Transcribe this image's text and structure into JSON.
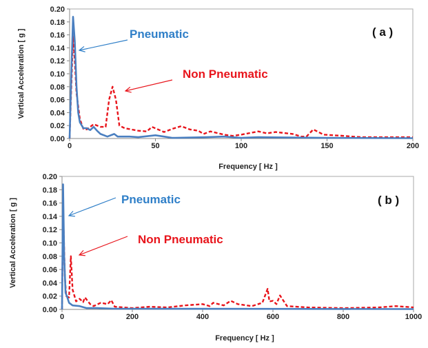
{
  "chart_data": [
    {
      "type": "line",
      "panel_label": "( a )",
      "xlabel": "Frequency  [ Hz ]",
      "ylabel": "Vertical Acceleration [ g ]",
      "xlim": [
        0,
        200
      ],
      "ylim": [
        0,
        0.2
      ],
      "xticks": [
        0,
        50,
        100,
        150,
        200
      ],
      "yticks": [
        "0.00",
        "0.02",
        "0.04",
        "0.06",
        "0.08",
        "0.10",
        "0.12",
        "0.14",
        "0.16",
        "0.18",
        "0.20"
      ],
      "grid": false,
      "annotations": [
        {
          "text": "Pneumatic",
          "color": "#2f7fc8"
        },
        {
          "text": "Non Pneumatic",
          "color": "#e8141b"
        }
      ],
      "series": [
        {
          "name": "Pneumatic",
          "color": "#4a7fc0",
          "style": "solid",
          "x": [
            0,
            1,
            2,
            3,
            4,
            5,
            6,
            8,
            10,
            12,
            14,
            16,
            18,
            22,
            26,
            28,
            35,
            40,
            50,
            55,
            60,
            80,
            90,
            100,
            110,
            150,
            200
          ],
          "y": [
            0,
            0.1,
            0.188,
            0.15,
            0.08,
            0.04,
            0.025,
            0.016,
            0.016,
            0.013,
            0.018,
            0.012,
            0.007,
            0.003,
            0.007,
            0.003,
            0.003,
            0.002,
            0.005,
            0.003,
            0.001,
            0.002,
            0.003,
            0.001,
            0.002,
            0.001,
            0.0005
          ]
        },
        {
          "name": "Non Pneumatic",
          "color": "#e8141b",
          "style": "dashed",
          "x": [
            0,
            1,
            2,
            3,
            4,
            6,
            8,
            10,
            14,
            18,
            21,
            23,
            25,
            27,
            29,
            32,
            40,
            45,
            48,
            55,
            60,
            65,
            70,
            75,
            78,
            82,
            90,
            95,
            100,
            110,
            115,
            120,
            130,
            135,
            138,
            142,
            148,
            160,
            170,
            200
          ],
          "y": [
            0,
            0.08,
            0.158,
            0.12,
            0.07,
            0.03,
            0.015,
            0.014,
            0.022,
            0.018,
            0.018,
            0.06,
            0.08,
            0.06,
            0.02,
            0.016,
            0.012,
            0.011,
            0.018,
            0.01,
            0.015,
            0.019,
            0.014,
            0.012,
            0.007,
            0.011,
            0.006,
            0.004,
            0.006,
            0.011,
            0.008,
            0.01,
            0.007,
            0.003,
            0.003,
            0.014,
            0.006,
            0.004,
            0.002,
            0.002
          ]
        }
      ]
    },
    {
      "type": "line",
      "panel_label": "( b )",
      "xlabel": "Frequency  [ Hz ]",
      "ylabel": "Vertical Acceleration [ g ]",
      "xlim": [
        0,
        1000
      ],
      "ylim": [
        0,
        0.2
      ],
      "xticks": [
        0,
        200,
        400,
        600,
        800,
        1000
      ],
      "yticks": [
        "0.00",
        "0.02",
        "0.04",
        "0.06",
        "0.08",
        "0.10",
        "0.12",
        "0.14",
        "0.16",
        "0.18",
        "0.20"
      ],
      "grid": false,
      "annotations": [
        {
          "text": "Pneumatic",
          "color": "#2f7fc8"
        },
        {
          "text": "Non Pneumatic",
          "color": "#e8141b"
        }
      ],
      "series": [
        {
          "name": "Pneumatic",
          "color": "#4a7fc0",
          "style": "solid",
          "x": [
            0,
            3,
            6,
            10,
            15,
            20,
            30,
            50,
            70,
            100,
            150,
            200,
            1000
          ],
          "y": [
            0,
            0.188,
            0.08,
            0.025,
            0.018,
            0.01,
            0.006,
            0.005,
            0.002,
            0.002,
            0.001,
            0.001,
            0.0005
          ]
        },
        {
          "name": "Non Pneumatic",
          "color": "#e8141b",
          "style": "dashed",
          "x": [
            0,
            3,
            8,
            12,
            20,
            25,
            30,
            40,
            50,
            60,
            65,
            80,
            90,
            110,
            130,
            140,
            150,
            200,
            250,
            300,
            350,
            400,
            420,
            430,
            460,
            480,
            500,
            540,
            570,
            585,
            590,
            600,
            610,
            620,
            640,
            700,
            800,
            900,
            950,
            1000
          ],
          "y": [
            0,
            0.155,
            0.05,
            0.02,
            0.018,
            0.08,
            0.03,
            0.012,
            0.016,
            0.011,
            0.018,
            0.008,
            0.005,
            0.01,
            0.008,
            0.014,
            0.004,
            0.002,
            0.004,
            0.003,
            0.006,
            0.008,
            0.005,
            0.01,
            0.006,
            0.013,
            0.008,
            0.005,
            0.01,
            0.031,
            0.012,
            0.013,
            0.008,
            0.021,
            0.005,
            0.003,
            0.002,
            0.003,
            0.005,
            0.003
          ]
        }
      ]
    }
  ]
}
